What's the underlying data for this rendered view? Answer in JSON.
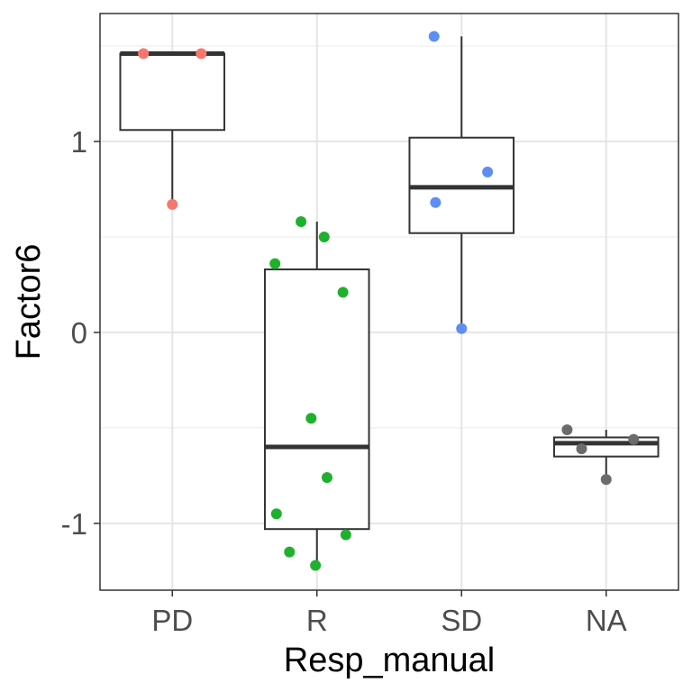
{
  "chart_data": {
    "type": "boxplot",
    "xlabel": "Resp_manual",
    "ylabel": "Factor6",
    "categories": [
      "PD",
      "R",
      "SD",
      "NA"
    ],
    "ylim": [
      -1.35,
      1.67
    ],
    "yticks": [
      -1,
      0,
      1
    ],
    "ytick_labels": [
      "-1",
      "0",
      "1"
    ],
    "grid": true,
    "legend": "none",
    "boxes": [
      {
        "category": "PD",
        "whisker_low": 0.67,
        "q1": 1.06,
        "median": 1.46,
        "q3": 1.46,
        "whisker_high": 1.46
      },
      {
        "category": "R",
        "whisker_low": -1.22,
        "q1": -1.03,
        "median": -0.6,
        "q3": 0.33,
        "whisker_high": 0.58
      },
      {
        "category": "SD",
        "whisker_low": 0.02,
        "q1": 0.52,
        "median": 0.76,
        "q3": 1.02,
        "whisker_high": 1.55
      },
      {
        "category": "NA",
        "whisker_low": -0.77,
        "q1": -0.65,
        "median": -0.58,
        "q3": -0.55,
        "whisker_high": -0.51
      }
    ],
    "points": [
      {
        "category": "PD",
        "jitter": -0.2,
        "y": 1.46
      },
      {
        "category": "PD",
        "jitter": 0.2,
        "y": 1.46
      },
      {
        "category": "PD",
        "jitter": 0.0,
        "y": 0.67
      },
      {
        "category": "R",
        "jitter": -0.11,
        "y": 0.58
      },
      {
        "category": "R",
        "jitter": 0.05,
        "y": 0.5
      },
      {
        "category": "R",
        "jitter": -0.29,
        "y": 0.36
      },
      {
        "category": "R",
        "jitter": 0.18,
        "y": 0.21
      },
      {
        "category": "R",
        "jitter": -0.04,
        "y": -0.45
      },
      {
        "category": "R",
        "jitter": 0.07,
        "y": -0.76
      },
      {
        "category": "R",
        "jitter": -0.28,
        "y": -0.95
      },
      {
        "category": "R",
        "jitter": 0.2,
        "y": -1.06
      },
      {
        "category": "R",
        "jitter": -0.19,
        "y": -1.15
      },
      {
        "category": "R",
        "jitter": -0.01,
        "y": -1.22
      },
      {
        "category": "SD",
        "jitter": -0.19,
        "y": 1.55
      },
      {
        "category": "SD",
        "jitter": 0.18,
        "y": 0.84
      },
      {
        "category": "SD",
        "jitter": -0.18,
        "y": 0.68
      },
      {
        "category": "SD",
        "jitter": 0.0,
        "y": 0.02
      },
      {
        "category": "NA",
        "jitter": -0.27,
        "y": -0.51
      },
      {
        "category": "NA",
        "jitter": 0.19,
        "y": -0.56
      },
      {
        "category": "NA",
        "jitter": -0.17,
        "y": -0.61
      },
      {
        "category": "NA",
        "jitter": 0.0,
        "y": -0.77
      }
    ],
    "colors": {
      "PD": "#f8766d",
      "R": "#1fb12e",
      "SD": "#5e8ef5",
      "NA": "#6b6b6b"
    }
  }
}
